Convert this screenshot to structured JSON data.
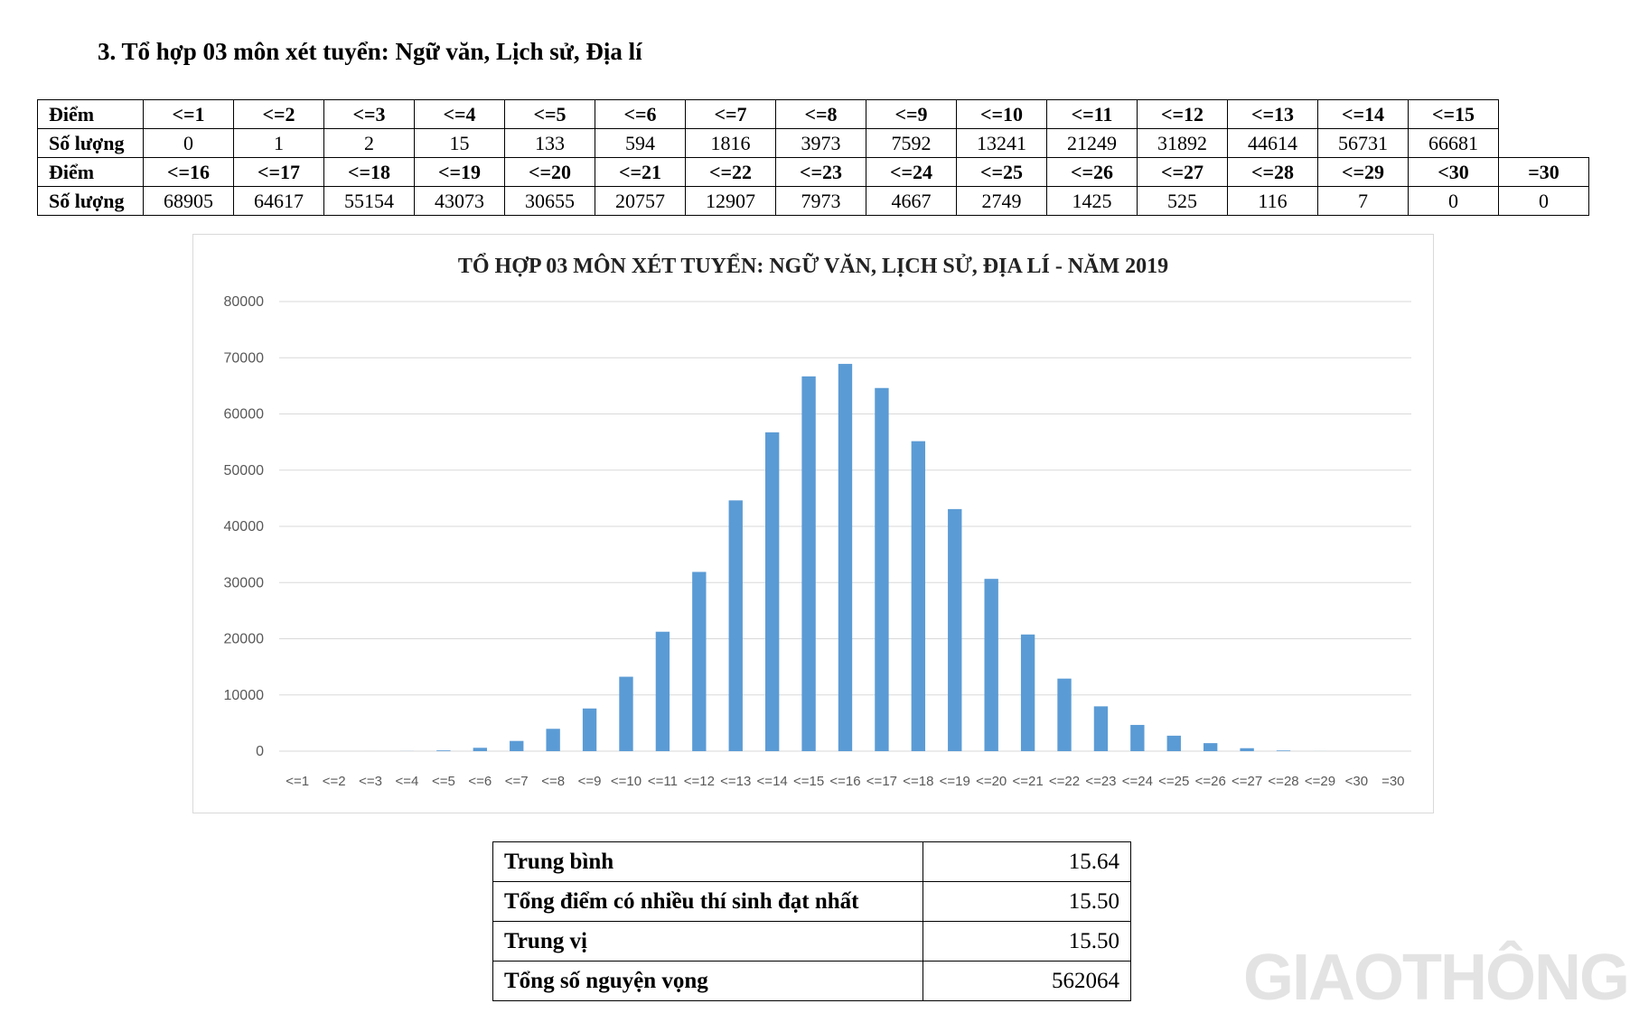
{
  "heading": "3. Tổ hợp 03 môn xét tuyển: Ngữ văn, Lịch sử, Địa lí",
  "table": {
    "row_label_score": "Điểm",
    "row_label_count": "Số lượng",
    "block1": {
      "scores": [
        "<=1",
        "<=2",
        "<=3",
        "<=4",
        "<=5",
        "<=6",
        "<=7",
        "<=8",
        "<=9",
        "<=10",
        "<=11",
        "<=12",
        "<=13",
        "<=14",
        "<=15"
      ],
      "counts": [
        "0",
        "1",
        "2",
        "15",
        "133",
        "594",
        "1816",
        "3973",
        "7592",
        "13241",
        "21249",
        "31892",
        "44614",
        "56731",
        "66681"
      ]
    },
    "block2": {
      "scores": [
        "<=16",
        "<=17",
        "<=18",
        "<=19",
        "<=20",
        "<=21",
        "<=22",
        "<=23",
        "<=24",
        "<=25",
        "<=26",
        "<=27",
        "<=28",
        "<=29",
        "<30",
        "=30"
      ],
      "counts": [
        "68905",
        "64617",
        "55154",
        "43073",
        "30655",
        "20757",
        "12907",
        "7973",
        "4667",
        "2749",
        "1425",
        "525",
        "116",
        "7",
        "0",
        "0"
      ]
    }
  },
  "chart_data": {
    "type": "bar",
    "title": "TỔ HỢP 03 MÔN XÉT TUYỂN: NGỮ VĂN, LỊCH SỬ, ĐỊA LÍ - NĂM 2019",
    "xlabel": "",
    "ylabel": "",
    "categories": [
      "<=1",
      "<=2",
      "<=3",
      "<=4",
      "<=5",
      "<=6",
      "<=7",
      "<=8",
      "<=9",
      "<=10",
      "<=11",
      "<=12",
      "<=13",
      "<=14",
      "<=15",
      "<=16",
      "<=17",
      "<=18",
      "<=19",
      "<=20",
      "<=21",
      "<=22",
      "<=23",
      "<=24",
      "<=25",
      "<=26",
      "<=27",
      "<=28",
      "<=29",
      "<30",
      "=30"
    ],
    "values": [
      0,
      1,
      2,
      15,
      133,
      594,
      1816,
      3973,
      7592,
      13241,
      21249,
      31892,
      44614,
      56731,
      66681,
      68905,
      64617,
      55154,
      43073,
      30655,
      20757,
      12907,
      7973,
      4667,
      2749,
      1425,
      525,
      116,
      7,
      0,
      0
    ],
    "ylim": [
      0,
      80000
    ],
    "yticks": [
      0,
      10000,
      20000,
      30000,
      40000,
      50000,
      60000,
      70000,
      80000
    ],
    "grid": true,
    "legend": "none",
    "bar_color": "#5b9bd5"
  },
  "stats": [
    {
      "label": "Trung bình",
      "value": "15.64"
    },
    {
      "label": "Tổng điểm có nhiều thí sinh đạt nhất",
      "value": "15.50"
    },
    {
      "label": "Trung vị",
      "value": "15.50"
    },
    {
      "label": "Tổng số nguyện vọng",
      "value": "562064"
    }
  ],
  "watermark": "GIAOTHÔNG"
}
